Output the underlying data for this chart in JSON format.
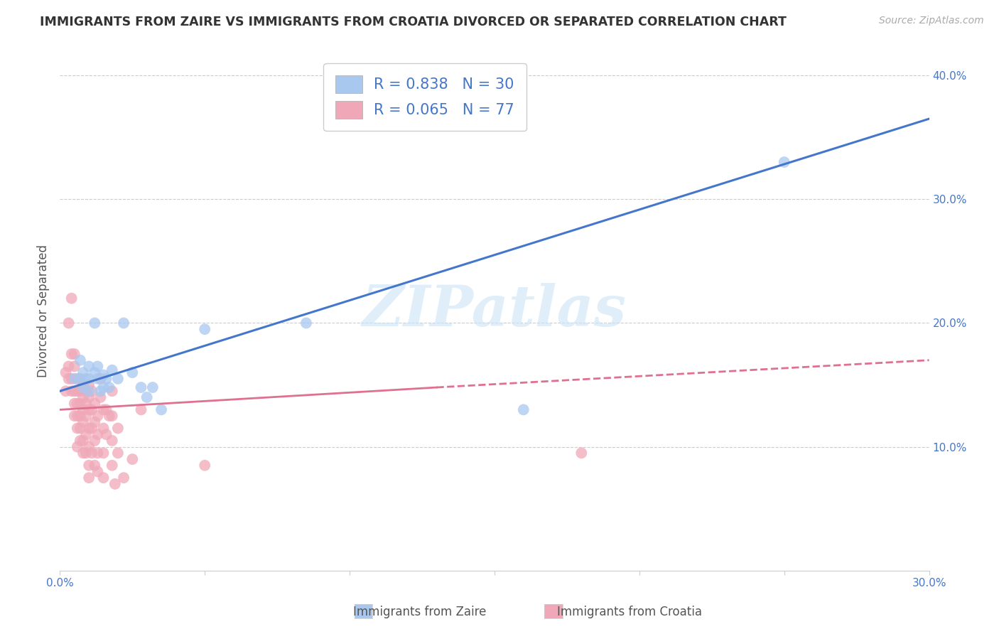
{
  "title": "IMMIGRANTS FROM ZAIRE VS IMMIGRANTS FROM CROATIA DIVORCED OR SEPARATED CORRELATION CHART",
  "source": "Source: ZipAtlas.com",
  "ylabel": "Divorced or Separated",
  "x_label_bottom": "Immigrants from Zaire",
  "x_label_bottom2": "Immigrants from Croatia",
  "xlim": [
    0.0,
    0.3
  ],
  "ylim": [
    0.0,
    0.42
  ],
  "xtick_vals": [
    0.0,
    0.05,
    0.1,
    0.15,
    0.2,
    0.25,
    0.3
  ],
  "xtick_labels": [
    "0.0%",
    "",
    "",
    "",
    "",
    "",
    "30.0%"
  ],
  "ytick_vals": [
    0.1,
    0.2,
    0.3,
    0.4
  ],
  "ytick_labels": [
    "10.0%",
    "20.0%",
    "30.0%",
    "40.0%"
  ],
  "grid_color": "#cccccc",
  "background_color": "#ffffff",
  "zaire_color": "#a8c8f0",
  "croatia_color": "#f0a8b8",
  "zaire_line_color": "#4477cc",
  "croatia_line_color": "#e07090",
  "R_zaire": 0.838,
  "N_zaire": 30,
  "R_croatia": 0.065,
  "N_croatia": 77,
  "watermark": "ZIPatlas",
  "zaire_line": [
    [
      0.0,
      0.145
    ],
    [
      0.3,
      0.365
    ]
  ],
  "croatia_line_solid": [
    [
      0.0,
      0.13
    ],
    [
      0.13,
      0.148
    ]
  ],
  "croatia_line_dashed": [
    [
      0.13,
      0.148
    ],
    [
      0.3,
      0.17
    ]
  ],
  "zaire_scatter": [
    [
      0.005,
      0.155
    ],
    [
      0.007,
      0.17
    ],
    [
      0.007,
      0.155
    ],
    [
      0.008,
      0.16
    ],
    [
      0.008,
      0.148
    ],
    [
      0.009,
      0.155
    ],
    [
      0.01,
      0.165
    ],
    [
      0.01,
      0.145
    ],
    [
      0.01,
      0.155
    ],
    [
      0.012,
      0.2
    ],
    [
      0.012,
      0.16
    ],
    [
      0.013,
      0.155
    ],
    [
      0.013,
      0.165
    ],
    [
      0.014,
      0.145
    ],
    [
      0.015,
      0.158
    ],
    [
      0.015,
      0.148
    ],
    [
      0.016,
      0.155
    ],
    [
      0.017,
      0.148
    ],
    [
      0.018,
      0.162
    ],
    [
      0.02,
      0.155
    ],
    [
      0.022,
      0.2
    ],
    [
      0.025,
      0.16
    ],
    [
      0.028,
      0.148
    ],
    [
      0.03,
      0.14
    ],
    [
      0.032,
      0.148
    ],
    [
      0.035,
      0.13
    ],
    [
      0.05,
      0.195
    ],
    [
      0.085,
      0.2
    ],
    [
      0.16,
      0.13
    ],
    [
      0.25,
      0.33
    ]
  ],
  "croatia_scatter": [
    [
      0.002,
      0.16
    ],
    [
      0.002,
      0.145
    ],
    [
      0.003,
      0.165
    ],
    [
      0.003,
      0.155
    ],
    [
      0.003,
      0.2
    ],
    [
      0.004,
      0.22
    ],
    [
      0.004,
      0.175
    ],
    [
      0.004,
      0.155
    ],
    [
      0.004,
      0.145
    ],
    [
      0.005,
      0.165
    ],
    [
      0.005,
      0.145
    ],
    [
      0.005,
      0.175
    ],
    [
      0.005,
      0.135
    ],
    [
      0.005,
      0.125
    ],
    [
      0.006,
      0.155
    ],
    [
      0.006,
      0.145
    ],
    [
      0.006,
      0.135
    ],
    [
      0.006,
      0.125
    ],
    [
      0.006,
      0.115
    ],
    [
      0.006,
      0.1
    ],
    [
      0.007,
      0.155
    ],
    [
      0.007,
      0.145
    ],
    [
      0.007,
      0.135
    ],
    [
      0.007,
      0.125
    ],
    [
      0.007,
      0.115
    ],
    [
      0.007,
      0.105
    ],
    [
      0.008,
      0.15
    ],
    [
      0.008,
      0.14
    ],
    [
      0.008,
      0.13
    ],
    [
      0.008,
      0.12
    ],
    [
      0.008,
      0.105
    ],
    [
      0.008,
      0.095
    ],
    [
      0.009,
      0.145
    ],
    [
      0.009,
      0.135
    ],
    [
      0.009,
      0.125
    ],
    [
      0.009,
      0.11
    ],
    [
      0.009,
      0.095
    ],
    [
      0.01,
      0.15
    ],
    [
      0.01,
      0.14
    ],
    [
      0.01,
      0.13
    ],
    [
      0.01,
      0.115
    ],
    [
      0.01,
      0.1
    ],
    [
      0.01,
      0.085
    ],
    [
      0.01,
      0.075
    ],
    [
      0.011,
      0.145
    ],
    [
      0.011,
      0.13
    ],
    [
      0.011,
      0.115
    ],
    [
      0.011,
      0.095
    ],
    [
      0.012,
      0.135
    ],
    [
      0.012,
      0.12
    ],
    [
      0.012,
      0.105
    ],
    [
      0.012,
      0.085
    ],
    [
      0.013,
      0.125
    ],
    [
      0.013,
      0.11
    ],
    [
      0.013,
      0.095
    ],
    [
      0.013,
      0.08
    ],
    [
      0.014,
      0.155
    ],
    [
      0.014,
      0.14
    ],
    [
      0.015,
      0.13
    ],
    [
      0.015,
      0.115
    ],
    [
      0.015,
      0.095
    ],
    [
      0.015,
      0.075
    ],
    [
      0.016,
      0.13
    ],
    [
      0.016,
      0.11
    ],
    [
      0.017,
      0.125
    ],
    [
      0.018,
      0.145
    ],
    [
      0.018,
      0.125
    ],
    [
      0.018,
      0.105
    ],
    [
      0.018,
      0.085
    ],
    [
      0.019,
      0.07
    ],
    [
      0.02,
      0.115
    ],
    [
      0.02,
      0.095
    ],
    [
      0.022,
      0.075
    ],
    [
      0.025,
      0.09
    ],
    [
      0.028,
      0.13
    ],
    [
      0.05,
      0.085
    ],
    [
      0.18,
      0.095
    ]
  ]
}
